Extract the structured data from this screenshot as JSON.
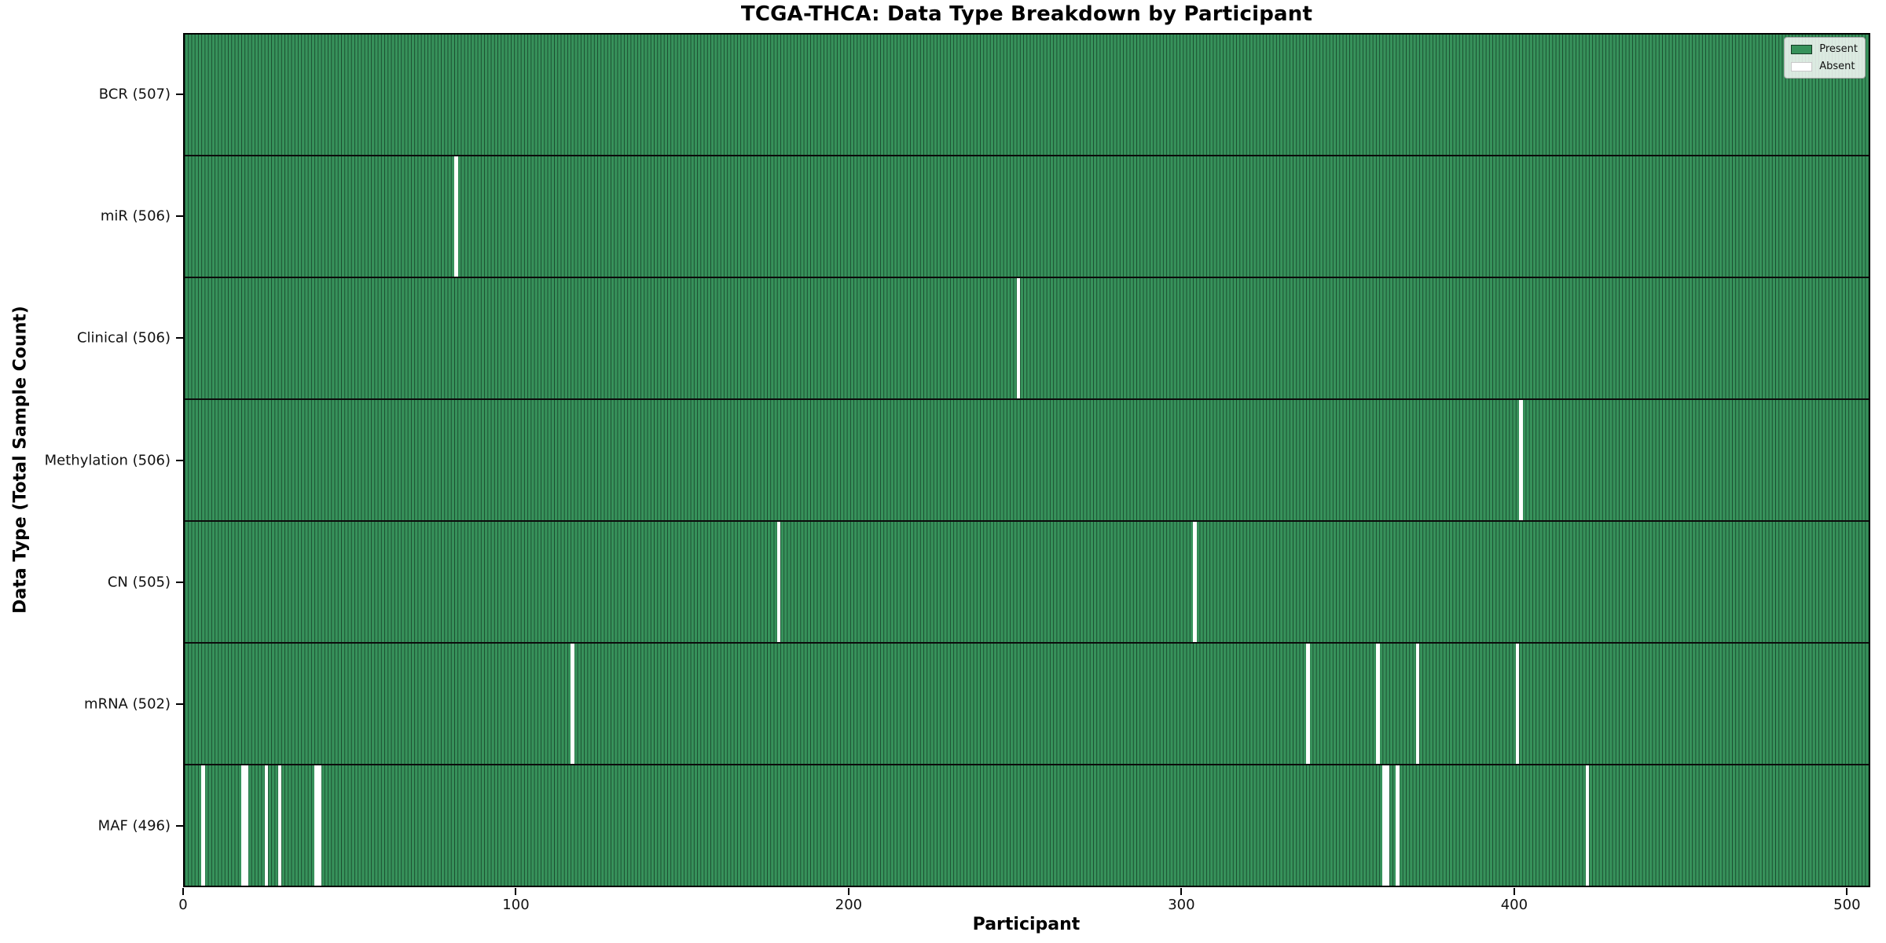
{
  "chart_data": {
    "type": "heatmap",
    "title": "TCGA-THCA: Data Type Breakdown by Participant",
    "xlabel": "Participant",
    "ylabel": "Data Type (Total Sample Count)",
    "x_ticks": [
      0,
      100,
      200,
      300,
      400,
      500
    ],
    "n_participants": 507,
    "grid": false,
    "legend_position": "upper right",
    "colors": {
      "present": "#37925b",
      "present_edge": "#1a4c2f",
      "absent": "#ffffff"
    },
    "legend": [
      {
        "label": "Present",
        "color": "#37925b"
      },
      {
        "label": "Absent",
        "color": "#ffffff"
      }
    ],
    "rows": [
      {
        "label": "BCR (507)",
        "data_type": "BCR",
        "total_sample_count": 507,
        "absent_participants": []
      },
      {
        "label": "miR (506)",
        "data_type": "miR",
        "total_sample_count": 506,
        "absent_participants": [
          81
        ]
      },
      {
        "label": "Clinical (506)",
        "data_type": "Clinical",
        "total_sample_count": 506,
        "absent_participants": [
          250
        ]
      },
      {
        "label": "Methylation (506)",
        "data_type": "Methylation",
        "total_sample_count": 506,
        "absent_participants": [
          401
        ]
      },
      {
        "label": "CN (505)",
        "data_type": "CN",
        "total_sample_count": 505,
        "absent_participants": [
          178,
          303
        ]
      },
      {
        "label": "mRNA (502)",
        "data_type": "mRNA",
        "total_sample_count": 502,
        "absent_participants": [
          116,
          337,
          358,
          370,
          400
        ]
      },
      {
        "label": "MAF (496)",
        "data_type": "MAF",
        "total_sample_count": 496,
        "absent_participants": [
          5,
          17,
          18,
          24,
          28,
          39,
          40,
          360,
          361,
          364,
          421
        ]
      }
    ]
  }
}
